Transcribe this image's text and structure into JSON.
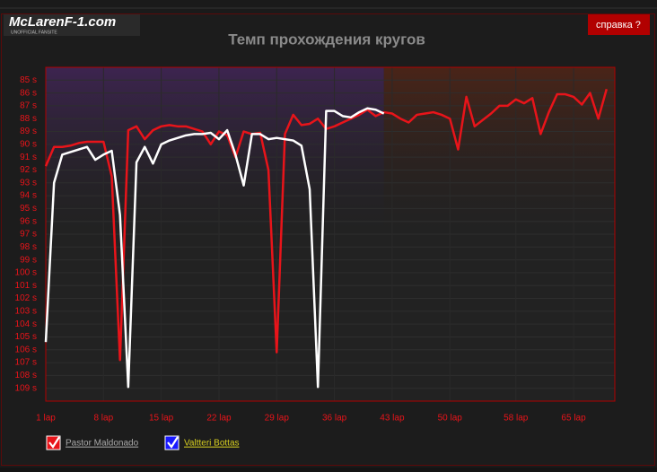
{
  "header": {
    "logo": "McLarenF-1.com",
    "tagline": "UNOFFICIAL FANSITE",
    "help": "справка ?"
  },
  "chart_data": {
    "type": "line",
    "title": "Темп прохождения кругов",
    "x": [
      1,
      2,
      3,
      4,
      5,
      6,
      7,
      8,
      9,
      10,
      11,
      12,
      13,
      14,
      15,
      16,
      17,
      18,
      19,
      20,
      21,
      22,
      23,
      24,
      25,
      26,
      27,
      28,
      29,
      30,
      31,
      32,
      33,
      34,
      35,
      36,
      37,
      38,
      39,
      40,
      41,
      42,
      43,
      44,
      45,
      46,
      47,
      48,
      49,
      50,
      51,
      52,
      53,
      54,
      55,
      56,
      57,
      58,
      59,
      60,
      61,
      62,
      63,
      64,
      65,
      66,
      67,
      68,
      69
    ],
    "series": [
      {
        "name": "Pastor Maldonado",
        "color": "#e8141a",
        "check_color": "#e8141a",
        "values": [
          91.7,
          90.2,
          90.2,
          90.1,
          89.9,
          89.8,
          89.8,
          89.8,
          92.5,
          106.8,
          88.9,
          88.6,
          89.6,
          88.9,
          88.6,
          88.5,
          88.6,
          88.6,
          88.8,
          89.0,
          90.0,
          89.0,
          89.3,
          91.0,
          89.0,
          89.2,
          89.1,
          92.0,
          106.2,
          89.2,
          87.7,
          88.5,
          88.4,
          88.0,
          88.8,
          88.6,
          88.3,
          88.0,
          87.7,
          87.3,
          87.8,
          87.5,
          87.6,
          88.0,
          88.3,
          87.7,
          87.6,
          87.5,
          87.7,
          88.0,
          90.4,
          86.3,
          88.6,
          88.1,
          87.6,
          87.0,
          87.0,
          86.5,
          86.8,
          86.4,
          89.2,
          87.5,
          86.1,
          86.1,
          86.3,
          86.9,
          86.0,
          88.0,
          85.7
        ]
      },
      {
        "name": "Valtteri Bottas",
        "color": "#ffffff",
        "check_color": "#1a1aff",
        "values": [
          105.4,
          93.0,
          90.8,
          90.6,
          90.4,
          90.2,
          91.2,
          90.8,
          90.5,
          95.5,
          108.9,
          91.4,
          90.2,
          91.5,
          90.0,
          89.7,
          89.5,
          89.3,
          89.2,
          89.2,
          89.1,
          89.6,
          88.9,
          90.8,
          93.2,
          89.2,
          89.2,
          89.6,
          89.5,
          89.6,
          89.7,
          90.1,
          93.5,
          108.9,
          87.4,
          87.4,
          87.8,
          87.9,
          87.5,
          87.2,
          87.3,
          87.6,
          null,
          null,
          null,
          null,
          null,
          null,
          null,
          null,
          null,
          null,
          null,
          null,
          null,
          null,
          null,
          null,
          null,
          null,
          null,
          null,
          null,
          null,
          null,
          null,
          null,
          null,
          null
        ]
      }
    ],
    "xlim": [
      1,
      70
    ],
    "xticks": [
      {
        "value": 1,
        "label": "1 lap"
      },
      {
        "value": 8,
        "label": "8 lap"
      },
      {
        "value": 15,
        "label": "15 lap"
      },
      {
        "value": 22,
        "label": "22 lap"
      },
      {
        "value": 29,
        "label": "29 lap"
      },
      {
        "value": 36,
        "label": "36 lap"
      },
      {
        "value": 43,
        "label": "43 lap"
      },
      {
        "value": 50,
        "label": "50 lap"
      },
      {
        "value": 58,
        "label": "58 lap"
      },
      {
        "value": 65,
        "label": "65 lap"
      }
    ],
    "ylim": [
      110,
      84
    ],
    "yticks": [
      {
        "value": 85,
        "label": "85 s"
      },
      {
        "value": 86,
        "label": "86 s"
      },
      {
        "value": 87,
        "label": "87 s"
      },
      {
        "value": 88,
        "label": "88 s"
      },
      {
        "value": 89,
        "label": "89 s"
      },
      {
        "value": 90,
        "label": "90 s"
      },
      {
        "value": 91,
        "label": "91 s"
      },
      {
        "value": 92,
        "label": "92 s"
      },
      {
        "value": 93,
        "label": "93 s"
      },
      {
        "value": 94,
        "label": "94 s"
      },
      {
        "value": 95,
        "label": "95 s"
      },
      {
        "value": 96,
        "label": "96 s"
      },
      {
        "value": 97,
        "label": "97 s"
      },
      {
        "value": 98,
        "label": "98 s"
      },
      {
        "value": 99,
        "label": "99 s"
      },
      {
        "value": 100,
        "label": "100 s"
      },
      {
        "value": 101,
        "label": "101 s"
      },
      {
        "value": 102,
        "label": "102 s"
      },
      {
        "value": 103,
        "label": "103 s"
      },
      {
        "value": 104,
        "label": "104 s"
      },
      {
        "value": 105,
        "label": "105 s"
      },
      {
        "value": 106,
        "label": "106 s"
      },
      {
        "value": 107,
        "label": "107 s"
      },
      {
        "value": 108,
        "label": "108 s"
      },
      {
        "value": 109,
        "label": "109 s"
      }
    ],
    "grid": true
  }
}
